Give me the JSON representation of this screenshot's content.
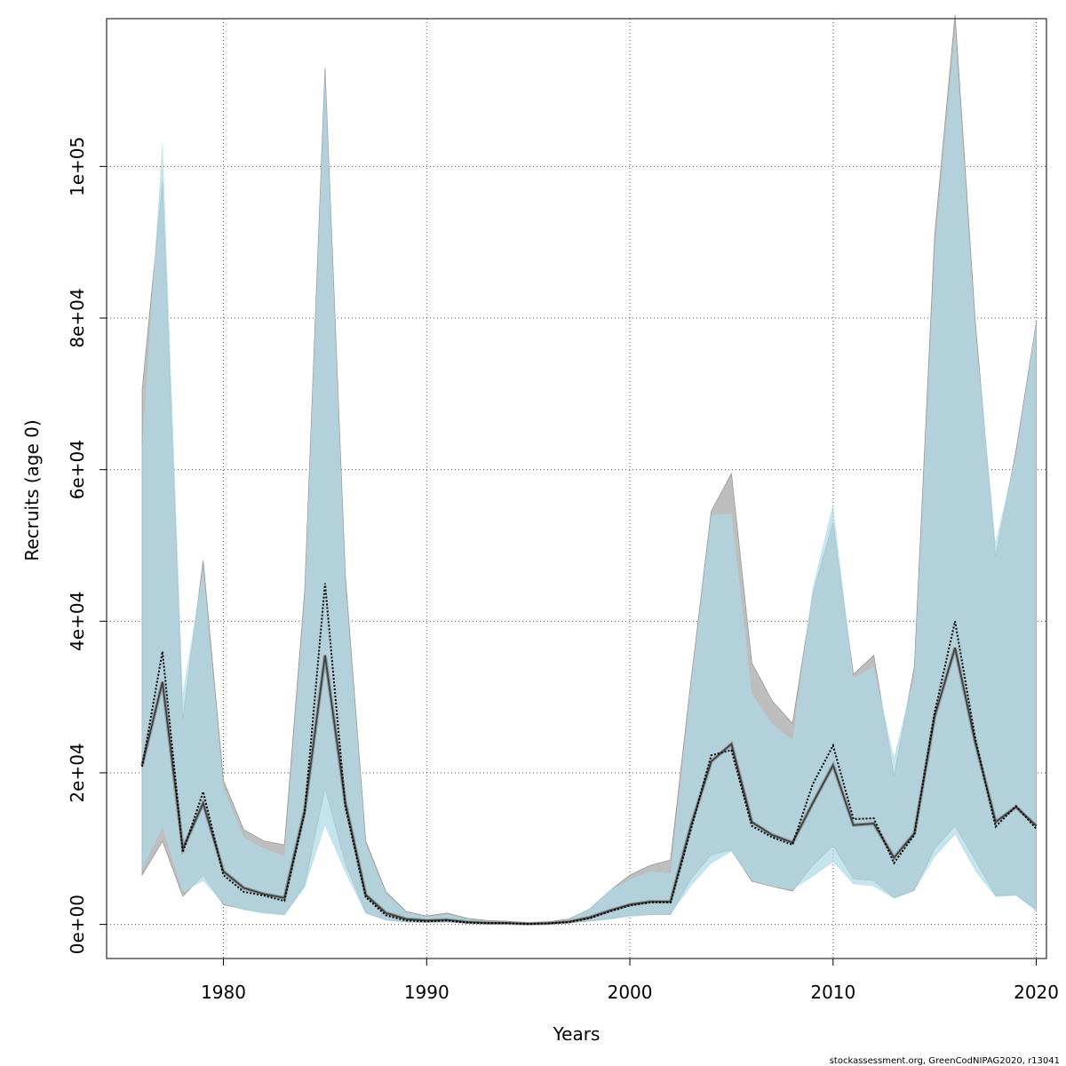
{
  "chart_data": {
    "type": "area",
    "title": "",
    "xlabel": "Years",
    "ylabel": "Recruits (age 0)",
    "footer": "stockassessment.org, GreenCodNIPAG2020, r13041",
    "xlim": [
      1974.25,
      2020.5
    ],
    "ylim": [
      -4500,
      119500
    ],
    "xticks": [
      1980,
      1990,
      2000,
      2010,
      2020
    ],
    "yticks": [
      0,
      20000,
      40000,
      60000,
      80000,
      100000
    ],
    "ytick_labels": [
      "0e+00",
      "2e+04",
      "4e+04",
      "6e+04",
      "8e+04",
      "1e+05"
    ],
    "grid": true,
    "colors": {
      "band_grey": "#bebebe",
      "band_blue": "#add8e6",
      "line_main": "#404040",
      "line_dotted": "#000000"
    },
    "x": [
      1976,
      1977,
      1978,
      1979,
      1980,
      1981,
      1982,
      1983,
      1984,
      1985,
      1986,
      1987,
      1988,
      1989,
      1990,
      1991,
      1992,
      1993,
      1994,
      1995,
      1996,
      1997,
      1998,
      1999,
      2000,
      2001,
      2002,
      2003,
      2004,
      2005,
      2006,
      2007,
      2008,
      2009,
      2010,
      2011,
      2012,
      2013,
      2014,
      2015,
      2016,
      2017,
      2018,
      2019,
      2020
    ],
    "series": [
      {
        "role": "band-grey",
        "lower": [
          6500,
          11000,
          3700,
          6500,
          2600,
          2000,
          1600,
          1300,
          5200,
          18000,
          8000,
          1600,
          600,
          300,
          250,
          300,
          150,
          100,
          100,
          50,
          100,
          200,
          450,
          750,
          1200,
          1300,
          1300,
          6000,
          9200,
          9800,
          5700,
          5000,
          4400,
          7800,
          10400,
          6000,
          5800,
          3500,
          4500,
          10000,
          13000,
          8500,
          3800,
          3900,
          2000
        ],
        "upper": [
          70500,
          98000,
          27000,
          48000,
          19000,
          12500,
          11000,
          10500,
          44000,
          113000,
          46000,
          11000,
          4300,
          1700,
          1100,
          1500,
          800,
          500,
          400,
          200,
          350,
          700,
          2000,
          4400,
          6500,
          7800,
          8500,
          32000,
          54500,
          59500,
          34500,
          29500,
          26500,
          43500,
          53000,
          33000,
          35500,
          19500,
          34000,
          91000,
          120000,
          79500,
          48500,
          62500,
          79500
        ]
      },
      {
        "role": "band-blue",
        "lower": [
          7300,
          12800,
          4200,
          5700,
          2700,
          1900,
          1400,
          1200,
          4800,
          13000,
          6800,
          1400,
          500,
          250,
          220,
          250,
          130,
          90,
          90,
          40,
          90,
          180,
          400,
          650,
          1000,
          1200,
          1300,
          5000,
          8000,
          9600,
          5800,
          5000,
          4600,
          6300,
          8200,
          5300,
          5000,
          3400,
          4400,
          8900,
          11800,
          7000,
          3600,
          3800,
          1700
        ],
        "upper": [
          63000,
          103500,
          30500,
          47000,
          18000,
          11500,
          10000,
          9000,
          43000,
          112500,
          45000,
          10500,
          4000,
          1600,
          1000,
          1300,
          700,
          450,
          350,
          180,
          300,
          650,
          2100,
          4500,
          5900,
          7000,
          6700,
          31500,
          54000,
          54200,
          30500,
          26500,
          24300,
          44500,
          55500,
          32500,
          34000,
          22000,
          33000,
          89000,
          118000,
          78500,
          50500,
          62000,
          79500
        ]
      },
      {
        "role": "line-solid",
        "values": [
          21000,
          32000,
          10000,
          16000,
          7000,
          4800,
          4000,
          3500,
          15000,
          35500,
          16000,
          3900,
          1500,
          700,
          500,
          600,
          300,
          200,
          180,
          80,
          150,
          350,
          900,
          1800,
          2600,
          3000,
          3000,
          13000,
          21500,
          23800,
          13500,
          11800,
          10800,
          16000,
          21000,
          13100,
          13300,
          8800,
          12000,
          27500,
          36500,
          24000,
          13500,
          15500,
          13000
        ]
      },
      {
        "role": "line-dotted",
        "values": [
          20800,
          36000,
          9500,
          17500,
          6500,
          4300,
          3800,
          3100,
          14800,
          45000,
          15500,
          3600,
          1200,
          500,
          400,
          500,
          250,
          150,
          150,
          60,
          130,
          300,
          800,
          1700,
          2500,
          2900,
          2900,
          12500,
          22300,
          23000,
          13000,
          11500,
          10500,
          18500,
          23600,
          13900,
          14000,
          8100,
          11800,
          28000,
          40000,
          24500,
          12900,
          15600,
          12600
        ]
      }
    ]
  }
}
